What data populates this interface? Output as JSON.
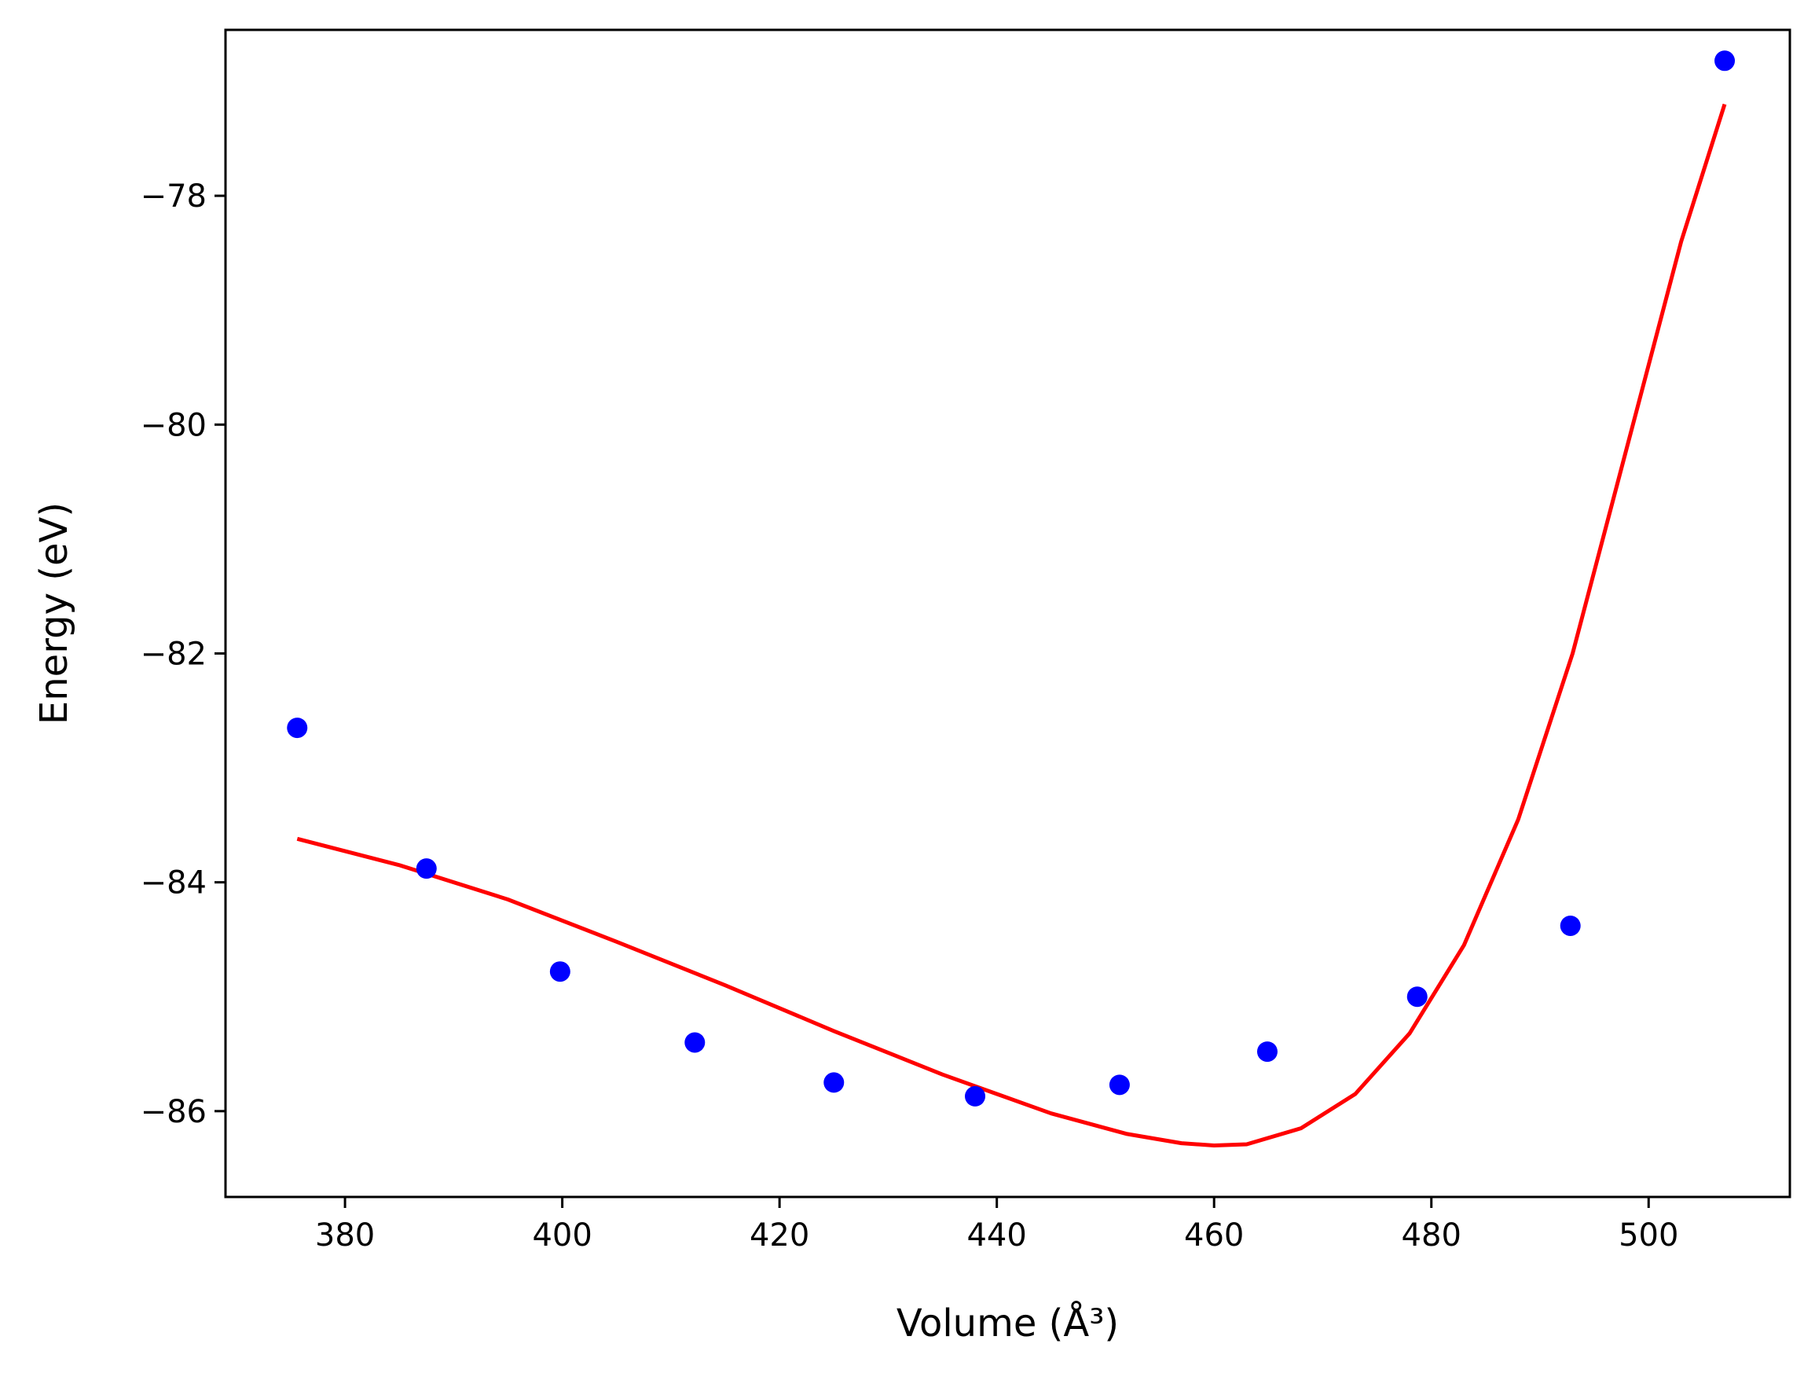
{
  "chart_data": {
    "type": "scatter",
    "xlabel": "Volume (Å³)",
    "ylabel": "Energy (eV)",
    "xlim": [
      369,
      513
    ],
    "ylim": [
      -86.75,
      -76.55
    ],
    "xticks": [
      380,
      400,
      420,
      440,
      460,
      480,
      500
    ],
    "yticks": [
      -78,
      -80,
      -82,
      -84,
      -86
    ],
    "xtick_labels": [
      "380",
      "400",
      "420",
      "440",
      "460",
      "480",
      "500"
    ],
    "ytick_labels": [
      "−78",
      "−80",
      "−82",
      "−84",
      "−86"
    ],
    "grid": false,
    "series": [
      {
        "kind": "points",
        "color": "#0000ff",
        "x": [
          375.6,
          387.5,
          399.8,
          412.2,
          425.0,
          438.0,
          451.3,
          464.9,
          478.7,
          492.8,
          507.0
        ],
        "y": [
          -82.65,
          -83.88,
          -84.78,
          -85.4,
          -85.75,
          -85.87,
          -85.77,
          -85.48,
          -85.0,
          -84.38,
          -76.82
        ]
      },
      {
        "kind": "fit-curve",
        "color": "#ff0000",
        "x": [
          375.6,
          385,
          395,
          405,
          415,
          425,
          435,
          445,
          452,
          457,
          460,
          463,
          468,
          473,
          478,
          483,
          488,
          493,
          498,
          503,
          507.0
        ],
        "y": [
          -83.62,
          -83.85,
          -84.15,
          -84.52,
          -84.9,
          -85.3,
          -85.68,
          -86.02,
          -86.2,
          -86.28,
          -86.3,
          -86.29,
          -86.15,
          -85.85,
          -85.32,
          -84.55,
          -83.45,
          -82.0,
          -80.2,
          -78.4,
          -77.2
        ]
      }
    ]
  }
}
